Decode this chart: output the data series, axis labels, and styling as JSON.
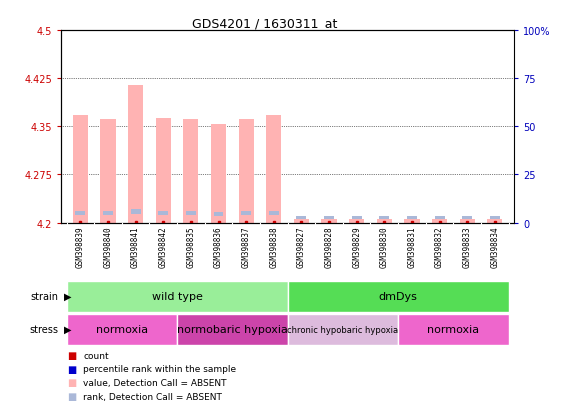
{
  "title": "GDS4201 / 1630311_at",
  "samples": [
    "GSM398839",
    "GSM398840",
    "GSM398841",
    "GSM398842",
    "GSM398835",
    "GSM398836",
    "GSM398837",
    "GSM398838",
    "GSM398827",
    "GSM398828",
    "GSM398829",
    "GSM398830",
    "GSM398831",
    "GSM398832",
    "GSM398833",
    "GSM398834"
  ],
  "values": [
    4.368,
    4.362,
    4.415,
    4.363,
    4.362,
    4.353,
    4.362,
    4.368,
    4.205,
    4.205,
    4.205,
    4.205,
    4.205,
    4.205,
    4.205,
    4.205
  ],
  "rank_heights": [
    0.006,
    0.006,
    0.007,
    0.006,
    0.006,
    0.006,
    0.006,
    0.006,
    0.005,
    0.005,
    0.005,
    0.005,
    0.005,
    0.005,
    0.005,
    0.005
  ],
  "rank_bottoms": [
    4.212,
    4.212,
    4.214,
    4.212,
    4.212,
    4.211,
    4.212,
    4.212,
    4.206,
    4.206,
    4.206,
    4.206,
    4.206,
    4.206,
    4.206,
    4.206
  ],
  "count_marks": [
    4.2015,
    4.2015,
    4.2015,
    4.2015,
    4.2015,
    4.2015,
    4.2015,
    4.2015,
    4.2015,
    4.2015,
    4.2015,
    4.2015,
    4.2015,
    4.2015,
    4.2015,
    4.2015
  ],
  "bar_base": 4.2,
  "ylim": [
    4.2,
    4.5
  ],
  "yticks": [
    4.2,
    4.275,
    4.35,
    4.425,
    4.5
  ],
  "ytick_labels": [
    "4.2",
    "4.275",
    "4.35",
    "4.425",
    "4.5"
  ],
  "right_yticks": [
    0,
    25,
    50,
    75,
    100
  ],
  "right_ytick_labels": [
    "0",
    "25",
    "50",
    "75",
    "100%"
  ],
  "bar_color": "#ffb3b3",
  "rank_color": "#aab8d8",
  "count_color": "#cc0000",
  "percentile_color": "#0000cc",
  "strain_groups": [
    {
      "label": "wild type",
      "start": 0,
      "end": 8,
      "color": "#99ee99"
    },
    {
      "label": "dmDys",
      "start": 8,
      "end": 16,
      "color": "#55dd55"
    }
  ],
  "stress_groups": [
    {
      "label": "normoxia",
      "start": 0,
      "end": 4,
      "color": "#ee66cc"
    },
    {
      "label": "normobaric hypoxia",
      "start": 4,
      "end": 8,
      "color": "#cc44aa"
    },
    {
      "label": "chronic hypobaric hypoxia",
      "start": 8,
      "end": 12,
      "color": "#ddbbdd"
    },
    {
      "label": "normoxia",
      "start": 12,
      "end": 16,
      "color": "#ee66cc"
    }
  ],
  "legend_items": [
    {
      "label": "count",
      "color": "#cc0000"
    },
    {
      "label": "percentile rank within the sample",
      "color": "#0000cc"
    },
    {
      "label": "value, Detection Call = ABSENT",
      "color": "#ffb3b3"
    },
    {
      "label": "rank, Detection Call = ABSENT",
      "color": "#aab8d8"
    }
  ],
  "ylabel_color": "#cc0000",
  "right_ylabel_color": "#0000bb",
  "xticklabel_fontsize": 5.5,
  "bar_width": 0.55
}
